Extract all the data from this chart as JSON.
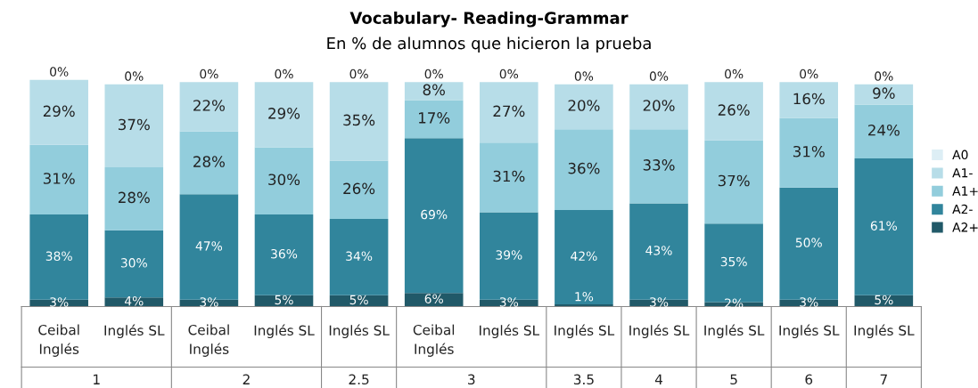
{
  "chart_data": {
    "type": "bar",
    "stacked": true,
    "title": "Vocabulary- Reading-Grammar",
    "subtitle": "En % de alumnos que hicieron la prueba",
    "categories": [
      "Ceibal\nInglés",
      "Inglés SL",
      "Ceibal\nInglés",
      "Inglés SL",
      "Inglés SL",
      "Ceibal\nInglés",
      "Inglés SL",
      "Inglés SL",
      "Inglés SL",
      "Inglés SL",
      "Inglés SL",
      "Inglés SL"
    ],
    "ylim": [
      0,
      102
    ],
    "tick_labels": "x",
    "legend": "right",
    "annotations": [
      "1",
      "2",
      "2.5",
      "3",
      "3.5",
      "4",
      "5",
      "6",
      "7"
    ],
    "series": [
      {
        "name": "A2+",
        "color": "#215968",
        "values": [
          3,
          4,
          3,
          5,
          5,
          6,
          3,
          1,
          3,
          2,
          3,
          5
        ],
        "value_labels": [
          "3%",
          "4%",
          "3%",
          "5%",
          "5%",
          "6%",
          "3%",
          "1%",
          "3%",
          "2%",
          "3%",
          "5%"
        ]
      },
      {
        "name": "A2-",
        "color": "#31859c",
        "values": [
          38,
          30,
          47,
          36,
          34,
          69,
          39,
          42,
          43,
          35,
          50,
          61
        ],
        "value_labels": [
          "38%",
          "30%",
          "47%",
          "36%",
          "34%",
          "69%",
          "39%",
          "42%",
          "43%",
          "35%",
          "50%",
          "61%"
        ]
      },
      {
        "name": "A1+",
        "color": "#92cddc",
        "values": [
          31,
          28,
          28,
          30,
          26,
          17,
          31,
          36,
          33,
          37,
          31,
          24
        ],
        "value_labels": [
          "31%",
          "28%",
          "28%",
          "30%",
          "26%",
          "17%",
          "31%",
          "36%",
          "33%",
          "37%",
          "31%",
          "24%"
        ]
      },
      {
        "name": "A1-",
        "color": "#b7dde8",
        "values": [
          29,
          37,
          22,
          29,
          35,
          8,
          27,
          20,
          20,
          26,
          16,
          9
        ],
        "value_labels": [
          "29%",
          "37%",
          "22%",
          "29%",
          "35%",
          "8%",
          "27%",
          "20%",
          "20%",
          "26%",
          "16%",
          "9%"
        ]
      },
      {
        "name": "A0",
        "color": "#ddeef5",
        "values": [
          0,
          0,
          0,
          0,
          0,
          0,
          0,
          0,
          0,
          0,
          0,
          0
        ],
        "value_labels": [
          "0%",
          "0%",
          "0%",
          "0%",
          "0%",
          "0%",
          "0%",
          "0%",
          "0%",
          "0%",
          "0%",
          "0%"
        ]
      }
    ]
  }
}
